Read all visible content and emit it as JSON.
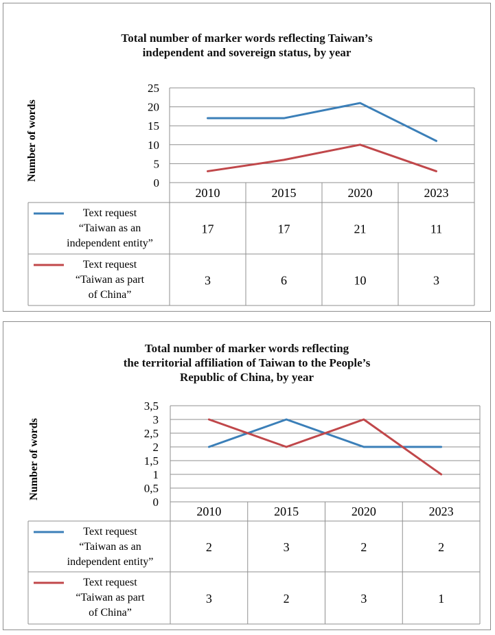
{
  "chart_data": [
    {
      "type": "line",
      "title_lines": [
        "Total number of marker words reflecting Taiwan’s",
        "independent and sovereign status, by year"
      ],
      "ylabel": "Number of words",
      "ylim": [
        0,
        25
      ],
      "ytick_labels": [
        "0",
        "5",
        "10",
        "15",
        "20",
        "25"
      ],
      "categories": [
        "2010",
        "2015",
        "2020",
        "2023"
      ],
      "series": [
        {
          "name_lines": [
            "Text request",
            "“Taiwan as an",
            "independent entity”"
          ],
          "color": "#3b7fb8",
          "values": [
            17,
            17,
            21,
            11
          ],
          "value_labels": [
            "17",
            "17",
            "21",
            "11"
          ]
        },
        {
          "name_lines": [
            "Text request",
            "“Taiwan as part",
            "of China”"
          ],
          "color": "#c0474a",
          "values": [
            3,
            6,
            10,
            3
          ],
          "value_labels": [
            "3",
            "6",
            "10",
            "3"
          ]
        }
      ]
    },
    {
      "type": "line",
      "title_lines": [
        "Total number of marker words reflecting",
        "the territorial affiliation of Taiwan to the People’s",
        "Republic of China, by year"
      ],
      "ylabel": "Number of words",
      "ylim": [
        0,
        3.5
      ],
      "ytick_labels": [
        "0",
        "0,5",
        "1",
        "1,5",
        "2",
        "2,5",
        "3",
        "3,5"
      ],
      "categories": [
        "2010",
        "2015",
        "2020",
        "2023"
      ],
      "series": [
        {
          "name_lines": [
            "Text request",
            "“Taiwan as an",
            "independent entity”"
          ],
          "color": "#3b7fb8",
          "values": [
            2,
            3,
            2,
            2
          ],
          "value_labels": [
            "2",
            "3",
            "2",
            "2"
          ]
        },
        {
          "name_lines": [
            "Text request",
            "“Taiwan as part",
            "of China”"
          ],
          "color": "#c0474a",
          "values": [
            3,
            2,
            3,
            1
          ],
          "value_labels": [
            "3",
            "2",
            "3",
            "1"
          ]
        }
      ]
    }
  ]
}
